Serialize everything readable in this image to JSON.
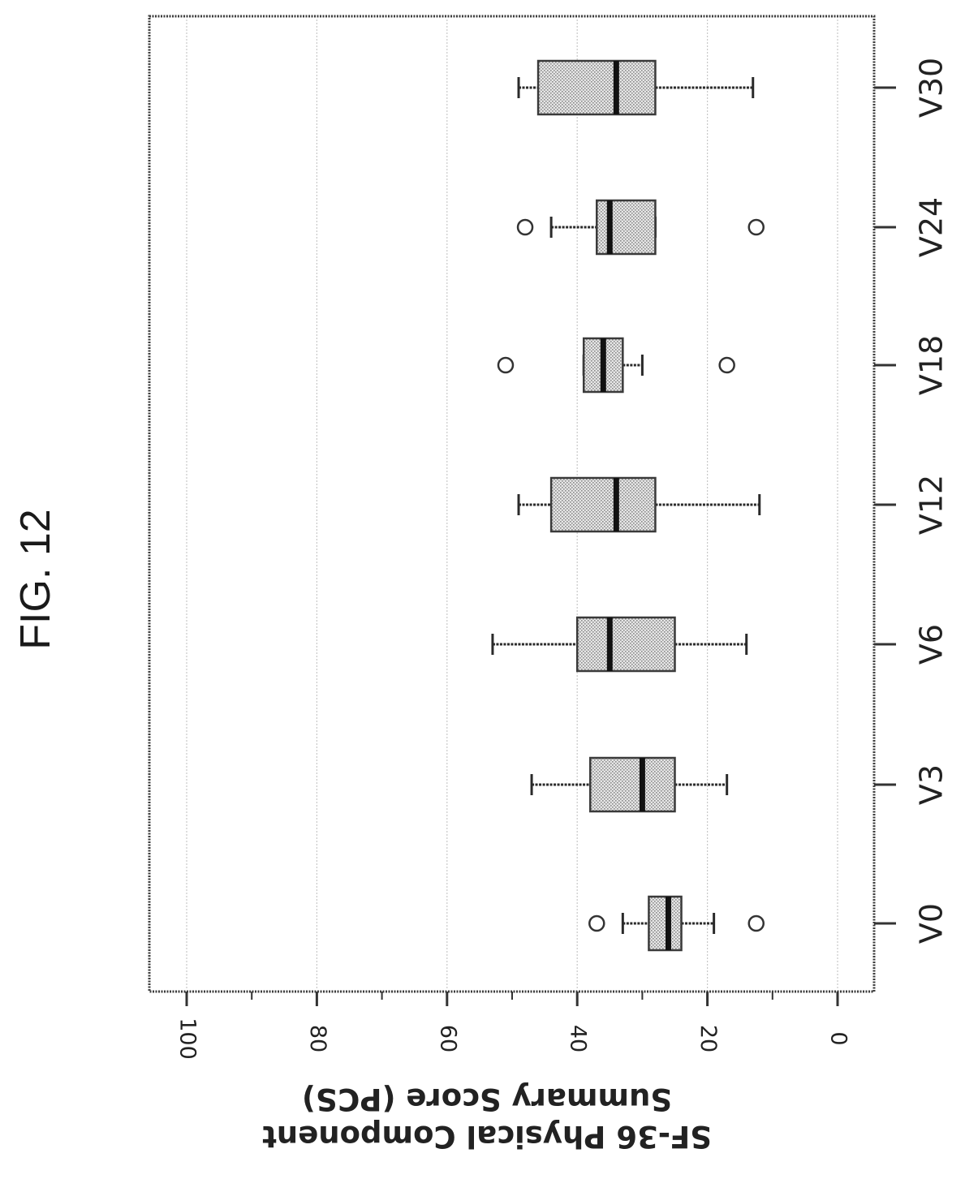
{
  "figure_label": "FIG. 12",
  "chart_data": {
    "type": "box",
    "title": "",
    "ylabel_line1": "SF-36 Physical Component",
    "ylabel_line2": "Summary Score (PCS)",
    "xlabel": "",
    "ylim": [
      0,
      100
    ],
    "yticks": [
      0,
      20,
      40,
      60,
      80,
      100
    ],
    "grid": true,
    "categories": [
      "V0",
      "V3",
      "V6",
      "V12",
      "V18",
      "V24",
      "V30"
    ],
    "boxes": [
      {
        "label": "V0",
        "whisker_low": 19,
        "q1": 24,
        "median": 26,
        "q3": 29,
        "whisker_high": 33,
        "outliers": [
          12.5,
          37
        ]
      },
      {
        "label": "V3",
        "whisker_low": 17,
        "q1": 25,
        "median": 30,
        "q3": 38,
        "whisker_high": 47,
        "outliers": []
      },
      {
        "label": "V6",
        "whisker_low": 14,
        "q1": 25,
        "median": 35,
        "q3": 40,
        "whisker_high": 53,
        "outliers": []
      },
      {
        "label": "V12",
        "whisker_low": 12,
        "q1": 28,
        "median": 34,
        "q3": 44,
        "whisker_high": 49,
        "outliers": []
      },
      {
        "label": "V18",
        "whisker_low": 30,
        "q1": 33,
        "median": 36,
        "q3": 39,
        "whisker_high": 39,
        "outliers": [
          17,
          51
        ]
      },
      {
        "label": "V24",
        "whisker_low": 28,
        "q1": 28,
        "median": 35,
        "q3": 37,
        "whisker_high": 44,
        "outliers": [
          12.5,
          48
        ]
      },
      {
        "label": "V30",
        "whisker_low": 13,
        "q1": 28,
        "median": 34,
        "q3": 46,
        "whisker_high": 49,
        "outliers": []
      }
    ]
  }
}
